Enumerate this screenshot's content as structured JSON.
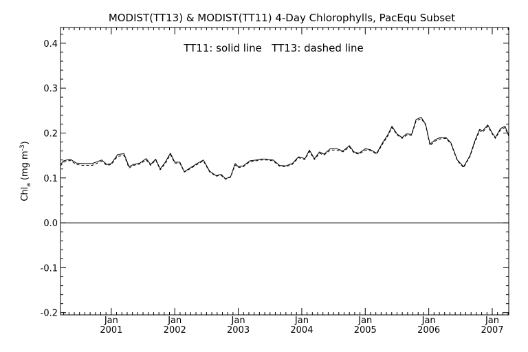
{
  "chart_data": {
    "type": "line",
    "title": "MODIST(TT13) & MODIST(TT11) 4-Day Chlorophylls, PacEqu Subset",
    "annotation": "TT11: solid line   TT13: dashed line",
    "ylabel": {
      "main": "Chl",
      "sub": "a",
      "units_open": " (mg m",
      "units_sup": "-3",
      "units_close": ")"
    },
    "ylim": [
      -0.205,
      0.435
    ],
    "xlim": [
      2000.2,
      2007.26
    ],
    "y_ticks": [
      {
        "value": -0.2,
        "label": "-0.2"
      },
      {
        "value": -0.1,
        "label": "-0.1"
      },
      {
        "value": 0.0,
        "label": "0.0"
      },
      {
        "value": 0.1,
        "label": "0.1"
      },
      {
        "value": 0.2,
        "label": "0.2"
      },
      {
        "value": 0.3,
        "label": "0.3"
      },
      {
        "value": 0.4,
        "label": "0.4"
      }
    ],
    "x_ticks": [
      {
        "value": 2001,
        "month": "Jan",
        "year": "2001"
      },
      {
        "value": 2002,
        "month": "Jan",
        "year": "2002"
      },
      {
        "value": 2003,
        "month": "Jan",
        "year": "2003"
      },
      {
        "value": 2004,
        "month": "Jan",
        "year": "2004"
      },
      {
        "value": 2005,
        "month": "Jan",
        "year": "2005"
      },
      {
        "value": 2006,
        "month": "Jan",
        "year": "2006"
      },
      {
        "value": 2007,
        "month": "Jan",
        "year": "2007"
      }
    ],
    "zero_line": 0.0,
    "grid": false,
    "series": [
      {
        "name": "TT11",
        "style": "solid",
        "x": [
          2000.2,
          2000.25,
          2000.35,
          2000.45,
          2000.55,
          2000.7,
          2000.85,
          2000.93,
          2001.0,
          2001.1,
          2001.2,
          2001.28,
          2001.35,
          2001.45,
          2001.55,
          2001.62,
          2001.7,
          2001.77,
          2001.85,
          2001.93,
          2002.0,
          2002.08,
          2002.15,
          2002.25,
          2002.35,
          2002.45,
          2002.55,
          2002.65,
          2002.73,
          2002.8,
          2002.88,
          2002.95,
          2003.0,
          2003.08,
          2003.18,
          2003.28,
          2003.35,
          2003.45,
          2003.55,
          2003.65,
          2003.75,
          2003.85,
          2003.95,
          2004.05,
          2004.12,
          2004.2,
          2004.28,
          2004.35,
          2004.45,
          2004.55,
          2004.65,
          2004.75,
          2004.82,
          2004.9,
          2005.0,
          2005.08,
          2005.18,
          2005.28,
          2005.35,
          2005.42,
          2005.5,
          2005.58,
          2005.65,
          2005.73,
          2005.8,
          2005.88,
          2005.95,
          2006.02,
          2006.1,
          2006.18,
          2006.27,
          2006.35,
          2006.45,
          2006.55,
          2006.65,
          2006.72,
          2006.8,
          2006.85,
          2006.93,
          2007.0,
          2007.05,
          2007.13,
          2007.2,
          2007.26
        ],
        "y": [
          0.13,
          0.138,
          0.142,
          0.133,
          0.132,
          0.132,
          0.14,
          0.13,
          0.132,
          0.152,
          0.154,
          0.125,
          0.13,
          0.133,
          0.143,
          0.13,
          0.142,
          0.12,
          0.135,
          0.155,
          0.135,
          0.135,
          0.114,
          0.123,
          0.132,
          0.14,
          0.115,
          0.105,
          0.108,
          0.098,
          0.103,
          0.132,
          0.125,
          0.127,
          0.138,
          0.14,
          0.142,
          0.142,
          0.14,
          0.128,
          0.127,
          0.132,
          0.147,
          0.143,
          0.162,
          0.143,
          0.158,
          0.153,
          0.165,
          0.165,
          0.16,
          0.172,
          0.158,
          0.155,
          0.165,
          0.163,
          0.155,
          0.18,
          0.195,
          0.215,
          0.198,
          0.19,
          0.198,
          0.197,
          0.23,
          0.235,
          0.22,
          0.175,
          0.185,
          0.19,
          0.19,
          0.178,
          0.14,
          0.125,
          0.15,
          0.18,
          0.208,
          0.205,
          0.218,
          0.2,
          0.19,
          0.21,
          0.215,
          0.195
        ]
      },
      {
        "name": "TT13",
        "style": "dashed",
        "x": [
          2000.2,
          2000.25,
          2000.35,
          2000.45,
          2000.55,
          2000.7,
          2000.85,
          2000.93,
          2001.0,
          2001.1,
          2001.2,
          2001.28,
          2001.35,
          2001.45,
          2001.55,
          2001.62,
          2001.7,
          2001.77,
          2001.85,
          2001.93,
          2002.0,
          2002.08,
          2002.15,
          2002.25,
          2002.35,
          2002.45,
          2002.55,
          2002.65,
          2002.73,
          2002.8,
          2002.88,
          2002.95,
          2003.0,
          2003.08,
          2003.18,
          2003.28,
          2003.35,
          2003.45,
          2003.55,
          2003.65,
          2003.75,
          2003.85,
          2003.95,
          2004.05,
          2004.12,
          2004.2,
          2004.28,
          2004.35,
          2004.45,
          2004.55,
          2004.65,
          2004.75,
          2004.82,
          2004.9,
          2005.0,
          2005.08,
          2005.18,
          2005.28,
          2005.35,
          2005.42,
          2005.5,
          2005.58,
          2005.65,
          2005.73,
          2005.8,
          2005.88,
          2005.95,
          2006.02,
          2006.1,
          2006.18,
          2006.27,
          2006.35,
          2006.45,
          2006.55,
          2006.65,
          2006.72,
          2006.8,
          2006.85,
          2006.93,
          2007.0,
          2007.05,
          2007.13,
          2007.2,
          2007.26
        ],
        "y": [
          0.127,
          0.135,
          0.139,
          0.13,
          0.128,
          0.128,
          0.137,
          0.128,
          0.13,
          0.148,
          0.15,
          0.122,
          0.128,
          0.131,
          0.14,
          0.128,
          0.14,
          0.118,
          0.132,
          0.152,
          0.133,
          0.133,
          0.113,
          0.121,
          0.13,
          0.138,
          0.113,
          0.104,
          0.106,
          0.097,
          0.102,
          0.129,
          0.123,
          0.125,
          0.136,
          0.138,
          0.14,
          0.14,
          0.138,
          0.126,
          0.125,
          0.13,
          0.145,
          0.141,
          0.159,
          0.141,
          0.155,
          0.151,
          0.162,
          0.162,
          0.158,
          0.169,
          0.156,
          0.153,
          0.162,
          0.161,
          0.153,
          0.177,
          0.192,
          0.212,
          0.196,
          0.188,
          0.195,
          0.195,
          0.227,
          0.232,
          0.218,
          0.172,
          0.182,
          0.187,
          0.188,
          0.176,
          0.138,
          0.123,
          0.148,
          0.177,
          0.205,
          0.202,
          0.215,
          0.198,
          0.188,
          0.207,
          0.212,
          0.193
        ]
      }
    ]
  }
}
